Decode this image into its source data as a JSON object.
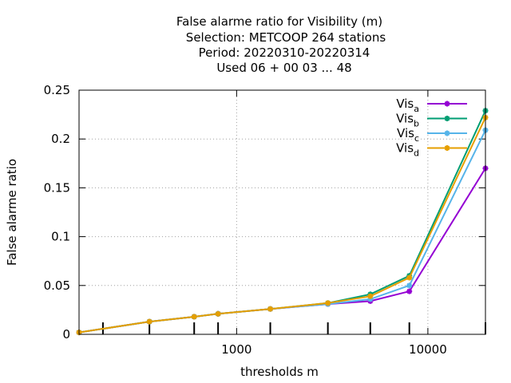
{
  "chart_data": {
    "type": "line",
    "title_lines": [
      "False alarme ratio  for Visibility (m)",
      "Selection: METCOOP    264 stations",
      "Period: 20220310-20220314",
      "Used  06 + 00 03 ... 48"
    ],
    "xlabel": "thresholds m",
    "ylabel": "False alarme ratio",
    "x_scale": "log",
    "xlim": [
      150,
      20000
    ],
    "ylim": [
      0,
      0.25
    ],
    "x_tick_labels": [
      "1000",
      "10000"
    ],
    "x_tick_values": [
      1000,
      10000
    ],
    "y_tick_labels": [
      "0",
      "0.05",
      "0.1",
      "0.15",
      "0.2",
      "0.25"
    ],
    "y_tick_values": [
      0,
      0.05,
      0.1,
      0.15,
      0.2,
      0.25
    ],
    "x_minor_marks": [
      200,
      350,
      600,
      800,
      1500,
      3000,
      5000,
      8000,
      20000
    ],
    "grid": true,
    "legend_position": "top-right",
    "x": [
      150,
      350,
      600,
      800,
      1500,
      3000,
      5000,
      8000,
      20000
    ],
    "series": [
      {
        "name": "Vis",
        "sub": "a",
        "color": "#9400d3",
        "values": [
          0.002,
          0.013,
          0.018,
          0.021,
          0.026,
          0.031,
          0.034,
          0.044,
          0.17
        ]
      },
      {
        "name": "Vis",
        "sub": "b",
        "color": "#009e73",
        "values": [
          0.002,
          0.013,
          0.018,
          0.021,
          0.026,
          0.032,
          0.041,
          0.06,
          0.229
        ]
      },
      {
        "name": "Vis",
        "sub": "c",
        "color": "#56b4e9",
        "values": [
          0.002,
          0.013,
          0.018,
          0.021,
          0.026,
          0.031,
          0.036,
          0.05,
          0.209
        ]
      },
      {
        "name": "Vis",
        "sub": "d",
        "color": "#e69f00",
        "values": [
          0.002,
          0.013,
          0.018,
          0.021,
          0.026,
          0.032,
          0.039,
          0.058,
          0.222
        ]
      }
    ]
  }
}
